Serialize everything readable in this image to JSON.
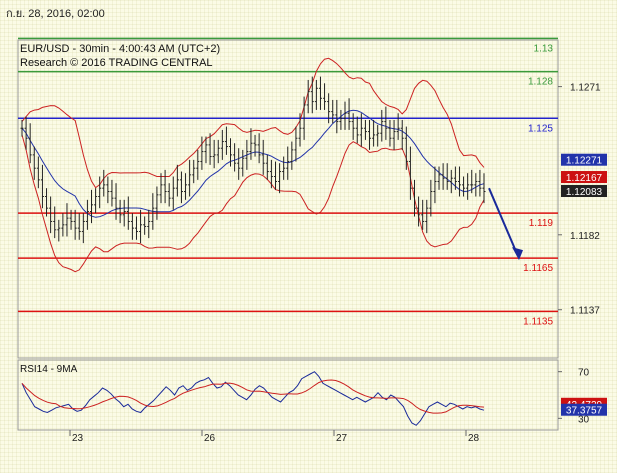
{
  "header": {
    "timestamp": "ก.ย. 28, 2016, 02:00"
  },
  "chart_data": {
    "type": "candlestick",
    "title": "EUR/USD - 30min - 4:00:43 AM (UTC+2)",
    "subtitle": "Research © 2016 TRADING CENTRAL",
    "price_axis": {
      "ylim": [
        1.1108,
        1.1299
      ],
      "ticks": [
        "1.1271",
        "1.1182",
        "1.1137"
      ]
    },
    "time_axis": {
      "ticks": [
        "23",
        "26",
        "27",
        "28"
      ]
    },
    "levels": [
      {
        "label": "1.13",
        "value": 1.13,
        "color": "#3a9a3a"
      },
      {
        "label": "1.128",
        "value": 1.128,
        "color": "#3a9a3a"
      },
      {
        "label": "1.125",
        "value": 1.1252,
        "color": "#2222cc"
      },
      {
        "label": "1.119",
        "value": 1.1195,
        "color": "#dd1111"
      },
      {
        "label": "1.1165",
        "value": 1.1168,
        "color": "#dd1111"
      },
      {
        "label": "1.1135",
        "value": 1.1136,
        "color": "#dd1111"
      }
    ],
    "price_badges": [
      {
        "label": "1.12271",
        "bg": "#2233aa"
      },
      {
        "label": "1.12167",
        "bg": "#cc1111"
      },
      {
        "label": "1.12083",
        "bg": "#222222"
      }
    ],
    "forecast_arrow": {
      "from": 1.121,
      "to": 1.1168,
      "color": "#1a2a9a"
    },
    "series": [
      {
        "name": "price",
        "values": [
          1.1246,
          1.124,
          1.123,
          1.1222,
          1.1215,
          1.1205,
          1.1198,
          1.119,
          1.1185,
          1.1186,
          1.1188,
          1.1192,
          1.119,
          1.1186,
          1.1184,
          1.119,
          1.1196,
          1.12,
          1.1205,
          1.121,
          1.1212,
          1.1208,
          1.1204,
          1.1198,
          1.1194,
          1.1196,
          1.119,
          1.1186,
          1.1184,
          1.1188,
          1.1187,
          1.119,
          1.1198,
          1.1206,
          1.1212,
          1.1208,
          1.1204,
          1.121,
          1.1215,
          1.1208,
          1.1212,
          1.1218,
          1.1222,
          1.1226,
          1.1232,
          1.1236,
          1.1229,
          1.123,
          1.1234,
          1.1238,
          1.1235,
          1.123,
          1.1225,
          1.1222,
          1.1228,
          1.1232,
          1.1237,
          1.1236,
          1.123,
          1.1225,
          1.122,
          1.1217,
          1.1214,
          1.122,
          1.1222,
          1.1226,
          1.1233,
          1.124,
          1.1246,
          1.126,
          1.1268,
          1.1262,
          1.127,
          1.1264,
          1.1262,
          1.1256,
          1.1254,
          1.125,
          1.1252,
          1.1255,
          1.125,
          1.1246,
          1.1242,
          1.1246,
          1.1244,
          1.124,
          1.1242,
          1.1243,
          1.125,
          1.1246,
          1.124,
          1.1244,
          1.1246,
          1.124,
          1.1226,
          1.121,
          1.1198,
          1.1194,
          1.119,
          1.1198,
          1.1208,
          1.1214,
          1.1218,
          1.1216,
          1.1214,
          1.1216,
          1.1214,
          1.1212,
          1.121,
          1.1212,
          1.1212,
          1.1214,
          1.121,
          1.1208
        ]
      },
      {
        "name": "bollinger_mid",
        "values": []
      },
      {
        "name": "rsi",
        "ylim": [
          20,
          80
        ],
        "ticks": [
          "70",
          "30"
        ],
        "values": [
          60,
          52,
          46,
          40,
          38,
          36,
          35,
          37,
          39,
          40,
          41,
          42,
          38,
          36,
          37,
          41,
          46,
          49,
          52,
          56,
          54,
          51,
          47,
          44,
          40,
          42,
          38,
          36,
          35,
          39,
          42,
          45,
          49,
          53,
          57,
          54,
          50,
          56,
          58,
          54,
          56,
          60,
          62,
          63,
          65,
          60,
          56,
          57,
          61,
          58,
          54,
          50,
          48,
          46,
          50,
          55,
          58,
          56,
          52,
          48,
          46,
          44,
          48,
          52,
          54,
          58,
          64,
          66,
          68,
          70,
          66,
          60,
          58,
          56,
          54,
          52,
          50,
          48,
          46,
          48,
          46,
          44,
          46,
          48,
          52,
          48,
          46,
          50,
          48,
          44,
          40,
          32,
          26,
          24,
          28,
          34,
          40,
          42,
          44,
          42,
          40,
          43,
          42,
          40,
          38,
          40,
          39,
          40,
          38,
          37
        ]
      }
    ],
    "rsi_panel": {
      "label": "RSI14 - 9MA",
      "badges": [
        {
          "label": "42.4729",
          "bg": "#cc1111"
        },
        {
          "label": "37.3757",
          "bg": "#2233aa"
        }
      ]
    }
  }
}
